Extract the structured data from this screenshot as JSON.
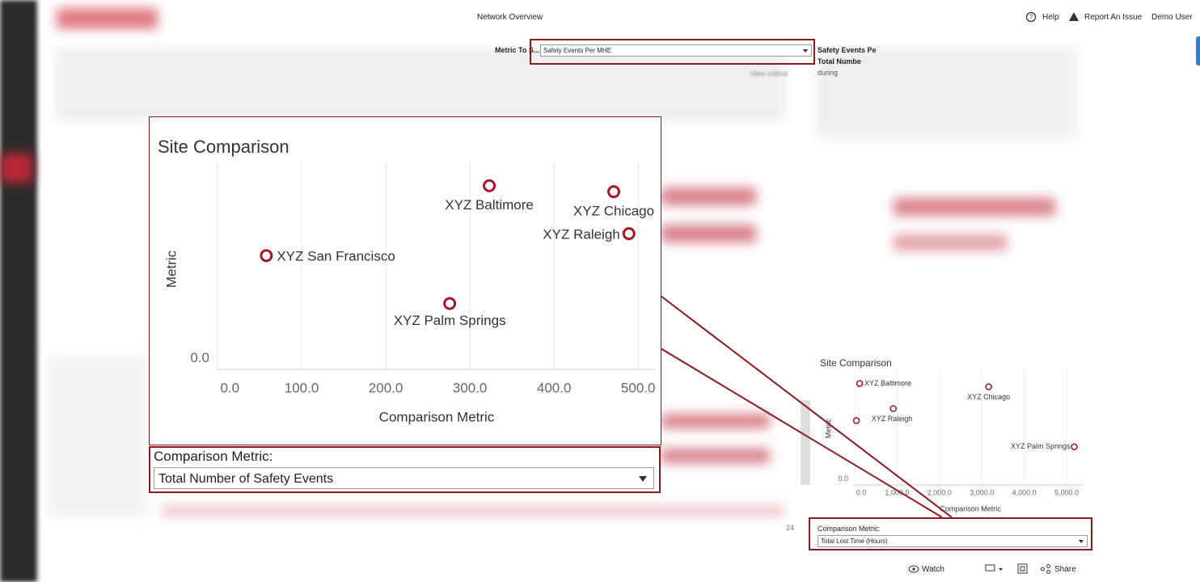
{
  "header": {
    "title": "Network Overview",
    "help": "Help",
    "report": "Report An Issue",
    "user": "Demo User"
  },
  "metric_selector": {
    "label": "Metric To S...",
    "value": "Safety Events Per MHE"
  },
  "side_text": [
    "Safety Events Pe",
    "Total Numbe",
    "during"
  ],
  "view_link": "View critical",
  "fragment": "24",
  "chart_data": [
    {
      "type": "scatter",
      "title": "Site Comparison",
      "x_label": "Comparison Metric",
      "y_label": "Metric",
      "labels": [
        "XYZ Baltimore",
        "XYZ Chicago",
        "XYZ Raleigh",
        "XYZ San Francisco",
        "XYZ Palm Springs"
      ],
      "x": [
        323,
        471,
        489,
        58,
        276
      ],
      "values": [
        0.92,
        0.89,
        0.68,
        0.57,
        0.33
      ],
      "color": "#a3192b",
      "xlim": [
        0,
        520
      ],
      "ylim": [
        0,
        1
      ],
      "xticks": [
        {
          "value": 0,
          "label": "0.0"
        },
        {
          "value": 100,
          "label": "100.0"
        },
        {
          "value": 200,
          "label": "200.0"
        },
        {
          "value": 300,
          "label": "300.0"
        },
        {
          "value": 400,
          "label": "400.0"
        },
        {
          "value": 500,
          "label": "500.0"
        }
      ],
      "yticks": [
        {
          "value": 0,
          "label": "0.0"
        }
      ],
      "grid": true,
      "selector_label": "Comparison Metric:",
      "selector_value": "Total Number of Safety Events"
    },
    {
      "type": "scatter",
      "title": "Site Comparison",
      "x_label": "Comparison Metric",
      "y_label": "Metric",
      "labels": [
        "XYZ Baltimore",
        "XYZ Chicago",
        "XYZ Raleigh",
        null,
        "XYZ Palm Springs"
      ],
      "x": [
        115,
        3160,
        910,
        40,
        5180
      ],
      "values": [
        0.93,
        0.9,
        0.7,
        0.59,
        0.35
      ],
      "color": "#a3192b",
      "xlim": [
        0,
        5400
      ],
      "ylim": [
        0,
        1
      ],
      "xticks": [
        {
          "value": 0,
          "label": "0.0"
        },
        {
          "value": 1000,
          "label": "1,000.0"
        },
        {
          "value": 2000,
          "label": "2,000.0"
        },
        {
          "value": 3000,
          "label": "3,000.0"
        },
        {
          "value": 4000,
          "label": "4,000.0"
        },
        {
          "value": 5000,
          "label": "5,000.0"
        }
      ],
      "yticks": [
        {
          "value": 0,
          "label": "0.0"
        }
      ],
      "grid": true,
      "selector_label": "Comparison Metric:",
      "selector_value": "Total Lost Time (Hours)"
    }
  ],
  "footer": {
    "watch": "Watch",
    "share": "Share"
  }
}
